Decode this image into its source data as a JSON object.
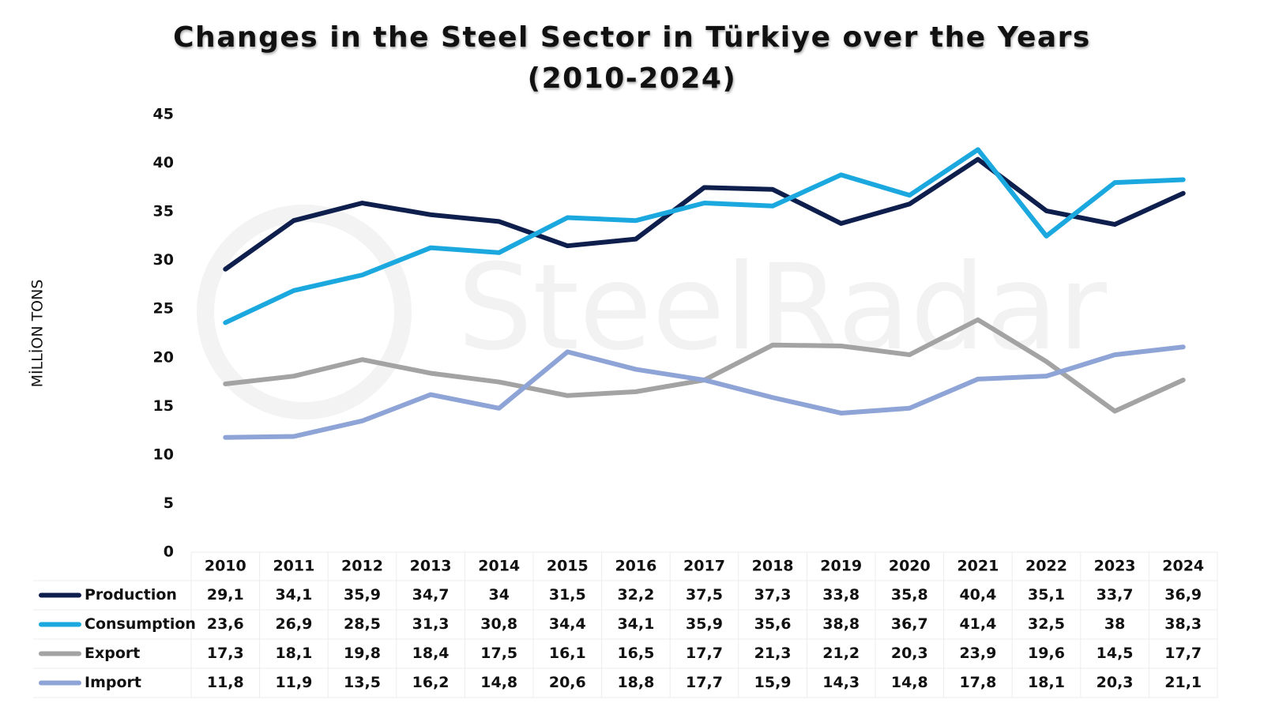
{
  "chart_data": {
    "type": "line",
    "title": "Changes in the Steel Sector in Türkiye over the Years (2010-2024)",
    "y_label": "MİLLİON TONS",
    "watermark": "SteelRadar",
    "categories": [
      "2010",
      "2011",
      "2012",
      "2013",
      "2014",
      "2015",
      "2016",
      "2017",
      "2018",
      "2019",
      "2020",
      "2021",
      "2022",
      "2023",
      "2024"
    ],
    "ylim": [
      0,
      45
    ],
    "yticks": [
      0,
      5,
      10,
      15,
      20,
      25,
      30,
      35,
      40,
      45
    ],
    "grid": false,
    "series": [
      {
        "name": "Production",
        "color": "#0f1f4d",
        "values": [
          29.1,
          34.1,
          35.9,
          34.7,
          34,
          31.5,
          32.2,
          37.5,
          37.3,
          33.8,
          35.8,
          40.4,
          35.1,
          33.7,
          36.9
        ],
        "value_labels": [
          "29,1",
          "34,1",
          "35,9",
          "34,7",
          "34",
          "31,5",
          "32,2",
          "37,5",
          "37,3",
          "33,8",
          "35,8",
          "40,4",
          "35,1",
          "33,7",
          "36,9"
        ]
      },
      {
        "name": "Consumption",
        "color": "#1ba8df",
        "values": [
          23.6,
          26.9,
          28.5,
          31.3,
          30.8,
          34.4,
          34.1,
          35.9,
          35.6,
          38.8,
          36.7,
          41.4,
          32.5,
          38,
          38.3
        ],
        "value_labels": [
          "23,6",
          "26,9",
          "28,5",
          "31,3",
          "30,8",
          "34,4",
          "34,1",
          "35,9",
          "35,6",
          "38,8",
          "36,7",
          "41,4",
          "32,5",
          "38",
          "38,3"
        ]
      },
      {
        "name": "Export",
        "color": "#a3a3a3",
        "values": [
          17.3,
          18.1,
          19.8,
          18.4,
          17.5,
          16.1,
          16.5,
          17.7,
          21.3,
          21.2,
          20.3,
          23.9,
          19.6,
          14.5,
          17.7
        ],
        "value_labels": [
          "17,3",
          "18,1",
          "19,8",
          "18,4",
          "17,5",
          "16,1",
          "16,5",
          "17,7",
          "21,3",
          "21,2",
          "20,3",
          "23,9",
          "19,6",
          "14,5",
          "17,7"
        ]
      },
      {
        "name": "Import",
        "color": "#8ea4d6",
        "values": [
          11.8,
          11.9,
          13.5,
          16.2,
          14.8,
          20.6,
          18.8,
          17.7,
          15.9,
          14.3,
          14.8,
          17.8,
          18.1,
          20.3,
          21.1
        ],
        "value_labels": [
          "11,8",
          "11,9",
          "13,5",
          "16,2",
          "14,8",
          "20,6",
          "18,8",
          "17,7",
          "15,9",
          "14,3",
          "14,8",
          "17,8",
          "18,1",
          "20,3",
          "21,1"
        ]
      }
    ]
  }
}
